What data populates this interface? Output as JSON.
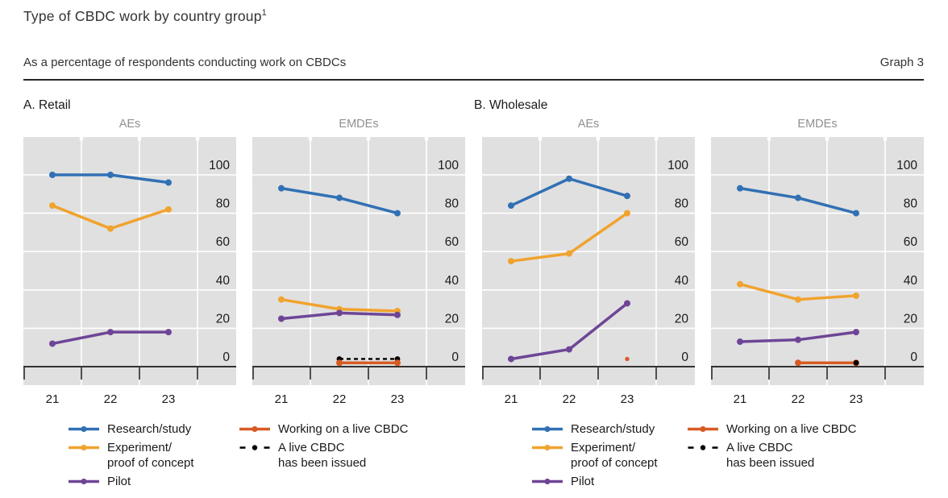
{
  "header": {
    "title": "Type of CBDC work by country group",
    "title_footnote": "1",
    "subtitle": "As a percentage of respondents conducting work on CBDCs",
    "graph_label": "Graph 3"
  },
  "colors": {
    "research": "#3170b4",
    "experiment": "#f0a32e",
    "pilot": "#6e4596",
    "live": "#d75b23",
    "issued": "#000000",
    "plot_bg": "#e0e0e0",
    "grid": "#ffffff",
    "axis": "#1a1a1a",
    "panel_title": "#8f8f8f",
    "text": "#262626"
  },
  "chart_data": {
    "type": "line",
    "x_labels": [
      "21",
      "22",
      "23"
    ],
    "ylim": [
      0,
      100
    ],
    "yticks": [
      0,
      20,
      40,
      60,
      80,
      100
    ],
    "grid": true,
    "legend_position": "bottom",
    "sections": [
      {
        "label": "A. Retail",
        "panels": [
          {
            "title": "AEs",
            "series": [
              {
                "key": "research",
                "name": "Research/study",
                "values": [
                  100,
                  100,
                  96
                ]
              },
              {
                "key": "experiment",
                "name": "Experiment/proof of concept",
                "values": [
                  84,
                  72,
                  82
                ]
              },
              {
                "key": "pilot",
                "name": "Pilot",
                "values": [
                  12,
                  18,
                  18
                ]
              }
            ]
          },
          {
            "title": "EMDEs",
            "series": [
              {
                "key": "research",
                "name": "Research/study",
                "values": [
                  93,
                  88,
                  80
                ]
              },
              {
                "key": "experiment",
                "name": "Experiment/proof of concept",
                "values": [
                  35,
                  30,
                  29
                ]
              },
              {
                "key": "pilot",
                "name": "Pilot",
                "values": [
                  25,
                  28,
                  27
                ]
              },
              {
                "key": "issued",
                "name": "A live CBDC has been issued",
                "values": [
                  null,
                  4,
                  4
                ]
              },
              {
                "key": "live",
                "name": "Working on a live CBDC",
                "values": [
                  null,
                  2,
                  2
                ]
              }
            ]
          }
        ]
      },
      {
        "label": "B. Wholesale",
        "panels": [
          {
            "title": "AEs",
            "series": [
              {
                "key": "research",
                "name": "Research/study",
                "values": [
                  84,
                  98,
                  89
                ]
              },
              {
                "key": "experiment",
                "name": "Experiment/proof of concept",
                "values": [
                  55,
                  59,
                  80
                ]
              },
              {
                "key": "pilot",
                "name": "Pilot",
                "values": [
                  4,
                  9,
                  33
                ]
              },
              {
                "key": "live",
                "name": "Working on a live CBDC",
                "values": [
                  null,
                  null,
                  4
                ]
              }
            ]
          },
          {
            "title": "EMDEs",
            "series": [
              {
                "key": "research",
                "name": "Research/study",
                "values": [
                  93,
                  88,
                  80
                ]
              },
              {
                "key": "experiment",
                "name": "Experiment/proof of concept",
                "values": [
                  43,
                  35,
                  37
                ]
              },
              {
                "key": "pilot",
                "name": "Pilot",
                "values": [
                  13,
                  14,
                  18
                ]
              },
              {
                "key": "live",
                "name": "Working on a live CBDC",
                "values": [
                  null,
                  2,
                  2
                ]
              },
              {
                "key": "issued",
                "name": "A live CBDC has been issued",
                "values": [
                  null,
                  null,
                  2
                ]
              }
            ]
          }
        ]
      }
    ],
    "legend": {
      "columns": [
        [
          {
            "key": "research",
            "lines": [
              "Research/study"
            ]
          },
          {
            "key": "experiment",
            "lines": [
              "Experiment/",
              "proof of concept"
            ]
          },
          {
            "key": "pilot",
            "lines": [
              "Pilot"
            ]
          }
        ],
        [
          {
            "key": "live",
            "lines": [
              "Working on a live CBDC"
            ]
          },
          {
            "key": "issued",
            "lines": [
              "A live CBDC",
              "has been issued"
            ]
          }
        ]
      ]
    }
  }
}
